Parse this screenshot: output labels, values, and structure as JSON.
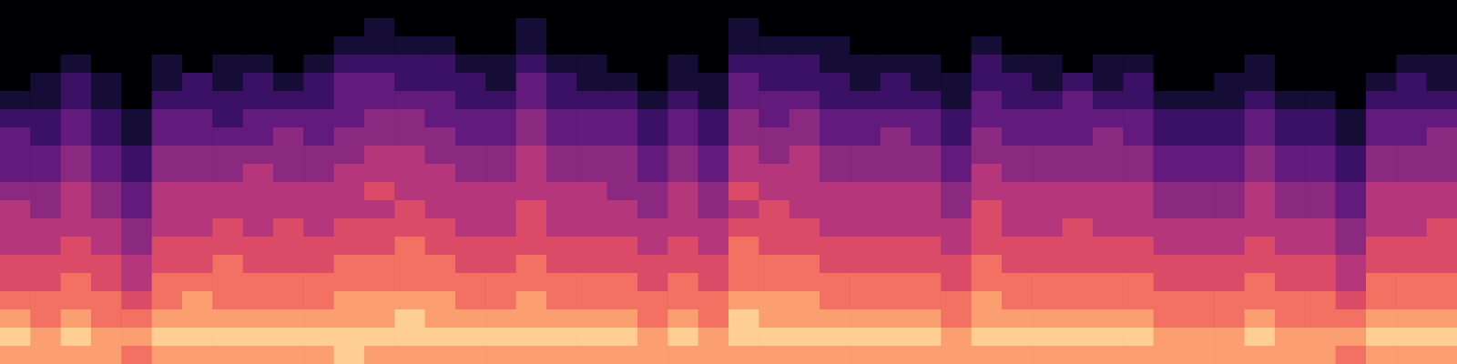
{
  "chart_data": {
    "type": "heatmap",
    "tick_labels": false,
    "color": "magma",
    "color_range": [
      0,
      10
    ],
    "cells": [
      [
        0,
        0,
        0,
        0,
        0,
        0,
        0,
        0,
        0,
        0,
        0,
        0,
        0,
        0,
        0,
        0,
        0,
        0,
        0,
        0,
        0,
        0,
        0,
        0,
        0,
        0,
        0,
        0,
        0,
        0,
        0,
        0,
        0,
        0,
        0,
        0,
        0,
        0,
        0,
        0,
        0,
        0,
        0,
        0,
        0,
        0,
        0,
        0
      ],
      [
        0,
        0,
        0,
        0,
        0,
        0,
        0,
        0,
        0,
        0,
        0,
        0,
        1,
        0,
        0,
        0,
        0,
        1,
        0,
        0,
        0,
        0,
        0,
        0,
        1,
        0,
        0,
        0,
        0,
        0,
        0,
        0,
        0,
        0,
        0,
        0,
        0,
        0,
        0,
        0,
        0,
        0,
        0,
        0,
        0,
        0,
        0,
        0
      ],
      [
        0,
        0,
        0,
        0,
        0,
        0,
        0,
        0,
        0,
        0,
        0,
        1,
        1,
        1,
        1,
        0,
        0,
        1,
        0,
        0,
        0,
        0,
        0,
        0,
        1,
        1,
        1,
        1,
        0,
        0,
        0,
        0,
        1,
        0,
        0,
        0,
        0,
        0,
        0,
        0,
        0,
        0,
        0,
        0,
        0,
        0,
        0,
        0
      ],
      [
        0,
        0,
        1,
        0,
        0,
        1,
        0,
        1,
        1,
        0,
        1,
        2,
        2,
        2,
        2,
        1,
        1,
        2,
        1,
        1,
        0,
        0,
        1,
        0,
        2,
        2,
        2,
        1,
        1,
        1,
        1,
        0,
        2,
        1,
        1,
        0,
        1,
        1,
        0,
        0,
        0,
        1,
        0,
        0,
        0,
        0,
        1,
        1
      ],
      [
        0,
        1,
        2,
        1,
        0,
        1,
        2,
        1,
        2,
        1,
        2,
        3,
        3,
        2,
        2,
        2,
        1,
        3,
        2,
        1,
        1,
        0,
        1,
        1,
        3,
        2,
        2,
        2,
        1,
        2,
        1,
        1,
        2,
        2,
        1,
        2,
        1,
        2,
        0,
        0,
        1,
        1,
        0,
        0,
        0,
        1,
        2,
        1
      ],
      [
        1,
        1,
        2,
        1,
        0,
        2,
        2,
        2,
        2,
        2,
        2,
        3,
        3,
        3,
        3,
        2,
        2,
        3,
        2,
        2,
        2,
        1,
        2,
        1,
        3,
        3,
        3,
        2,
        2,
        2,
        2,
        1,
        3,
        2,
        2,
        3,
        2,
        2,
        1,
        1,
        1,
        2,
        1,
        1,
        0,
        2,
        2,
        2
      ],
      [
        2,
        2,
        3,
        2,
        1,
        3,
        3,
        2,
        3,
        3,
        3,
        3,
        4,
        4,
        3,
        3,
        3,
        4,
        3,
        3,
        3,
        2,
        3,
        2,
        4,
        3,
        4,
        3,
        3,
        3,
        3,
        2,
        3,
        3,
        3,
        3,
        3,
        3,
        2,
        2,
        2,
        3,
        2,
        2,
        1,
        3,
        3,
        3
      ],
      [
        3,
        2,
        3,
        2,
        1,
        3,
        3,
        3,
        3,
        4,
        3,
        4,
        4,
        4,
        4,
        3,
        3,
        4,
        3,
        3,
        3,
        2,
        3,
        2,
        4,
        4,
        4,
        3,
        3,
        4,
        3,
        2,
        4,
        3,
        3,
        3,
        4,
        3,
        2,
        2,
        2,
        3,
        2,
        2,
        1,
        3,
        3,
        4
      ],
      [
        3,
        3,
        4,
        3,
        2,
        4,
        4,
        4,
        4,
        4,
        4,
        4,
        5,
        5,
        4,
        4,
        4,
        5,
        4,
        4,
        4,
        3,
        4,
        3,
        5,
        4,
        5,
        4,
        4,
        4,
        4,
        3,
        4,
        4,
        4,
        4,
        4,
        4,
        3,
        3,
        3,
        4,
        3,
        3,
        2,
        4,
        4,
        4
      ],
      [
        3,
        3,
        4,
        3,
        2,
        4,
        4,
        4,
        5,
        4,
        4,
        5,
        5,
        5,
        5,
        4,
        4,
        5,
        4,
        4,
        4,
        3,
        4,
        3,
        5,
        5,
        5,
        4,
        4,
        4,
        4,
        3,
        5,
        4,
        4,
        4,
        4,
        4,
        3,
        3,
        3,
        4,
        3,
        3,
        2,
        4,
        4,
        4
      ],
      [
        4,
        4,
        5,
        4,
        3,
        5,
        5,
        5,
        5,
        5,
        5,
        5,
        6,
        5,
        5,
        5,
        5,
        5,
        5,
        5,
        4,
        4,
        5,
        4,
        6,
        5,
        5,
        5,
        5,
        5,
        5,
        4,
        5,
        5,
        5,
        5,
        5,
        5,
        4,
        4,
        4,
        5,
        4,
        4,
        3,
        5,
        5,
        5
      ],
      [
        5,
        4,
        5,
        4,
        3,
        5,
        5,
        5,
        5,
        5,
        5,
        5,
        5,
        6,
        5,
        5,
        5,
        6,
        5,
        5,
        5,
        4,
        5,
        4,
        5,
        6,
        5,
        5,
        5,
        5,
        5,
        4,
        6,
        5,
        5,
        5,
        5,
        5,
        4,
        4,
        4,
        5,
        4,
        4,
        3,
        5,
        5,
        5
      ],
      [
        5,
        5,
        5,
        5,
        4,
        5,
        5,
        6,
        5,
        6,
        5,
        6,
        6,
        6,
        6,
        5,
        5,
        6,
        5,
        5,
        5,
        5,
        5,
        5,
        6,
        6,
        6,
        5,
        5,
        5,
        5,
        5,
        6,
        5,
        5,
        6,
        5,
        5,
        5,
        5,
        5,
        5,
        5,
        5,
        4,
        5,
        5,
        6
      ],
      [
        5,
        5,
        6,
        5,
        4,
        6,
        6,
        6,
        6,
        6,
        6,
        6,
        6,
        7,
        6,
        6,
        6,
        6,
        6,
        6,
        6,
        5,
        6,
        5,
        7,
        6,
        6,
        6,
        6,
        6,
        6,
        5,
        6,
        6,
        6,
        6,
        6,
        6,
        5,
        5,
        5,
        6,
        5,
        5,
        4,
        6,
        6,
        6
      ],
      [
        6,
        6,
        6,
        6,
        5,
        6,
        6,
        7,
        6,
        6,
        6,
        7,
        7,
        7,
        7,
        6,
        6,
        7,
        6,
        6,
        6,
        6,
        6,
        6,
        7,
        7,
        7,
        6,
        6,
        6,
        6,
        6,
        7,
        6,
        6,
        6,
        6,
        6,
        6,
        6,
        6,
        6,
        6,
        6,
        5,
        6,
        6,
        6
      ],
      [
        6,
        6,
        7,
        6,
        5,
        7,
        7,
        7,
        7,
        7,
        7,
        7,
        7,
        7,
        7,
        7,
        7,
        7,
        7,
        7,
        7,
        6,
        7,
        6,
        7,
        7,
        7,
        7,
        7,
        7,
        7,
        6,
        7,
        7,
        7,
        7,
        7,
        7,
        6,
        6,
        6,
        7,
        6,
        6,
        5,
        7,
        7,
        7
      ],
      [
        7,
        7,
        7,
        7,
        6,
        7,
        8,
        7,
        7,
        7,
        7,
        8,
        8,
        8,
        8,
        7,
        7,
        8,
        7,
        7,
        7,
        7,
        7,
        7,
        8,
        8,
        8,
        7,
        7,
        7,
        7,
        7,
        8,
        7,
        7,
        7,
        7,
        7,
        7,
        7,
        7,
        7,
        7,
        7,
        6,
        7,
        7,
        7
      ],
      [
        8,
        7,
        8,
        7,
        7,
        8,
        8,
        8,
        8,
        8,
        8,
        8,
        8,
        9,
        8,
        8,
        8,
        8,
        8,
        8,
        8,
        7,
        8,
        7,
        9,
        8,
        8,
        8,
        8,
        8,
        8,
        7,
        8,
        8,
        8,
        8,
        8,
        8,
        7,
        7,
        7,
        8,
        7,
        7,
        7,
        8,
        8,
        8
      ],
      [
        9,
        8,
        9,
        8,
        8,
        9,
        9,
        9,
        9,
        9,
        9,
        9,
        9,
        9,
        9,
        9,
        9,
        9,
        9,
        9,
        9,
        8,
        9,
        8,
        9,
        9,
        9,
        9,
        9,
        9,
        9,
        8,
        9,
        9,
        9,
        9,
        9,
        9,
        8,
        8,
        8,
        9,
        8,
        8,
        8,
        9,
        9,
        9
      ],
      [
        8,
        8,
        8,
        8,
        7,
        8,
        8,
        8,
        8,
        8,
        8,
        9,
        8,
        8,
        8,
        8,
        8,
        8,
        8,
        8,
        8,
        8,
        8,
        8,
        8,
        8,
        8,
        8,
        8,
        8,
        8,
        8,
        8,
        8,
        8,
        8,
        8,
        8,
        8,
        8,
        8,
        8,
        8,
        8,
        7,
        8,
        8,
        8
      ]
    ]
  }
}
